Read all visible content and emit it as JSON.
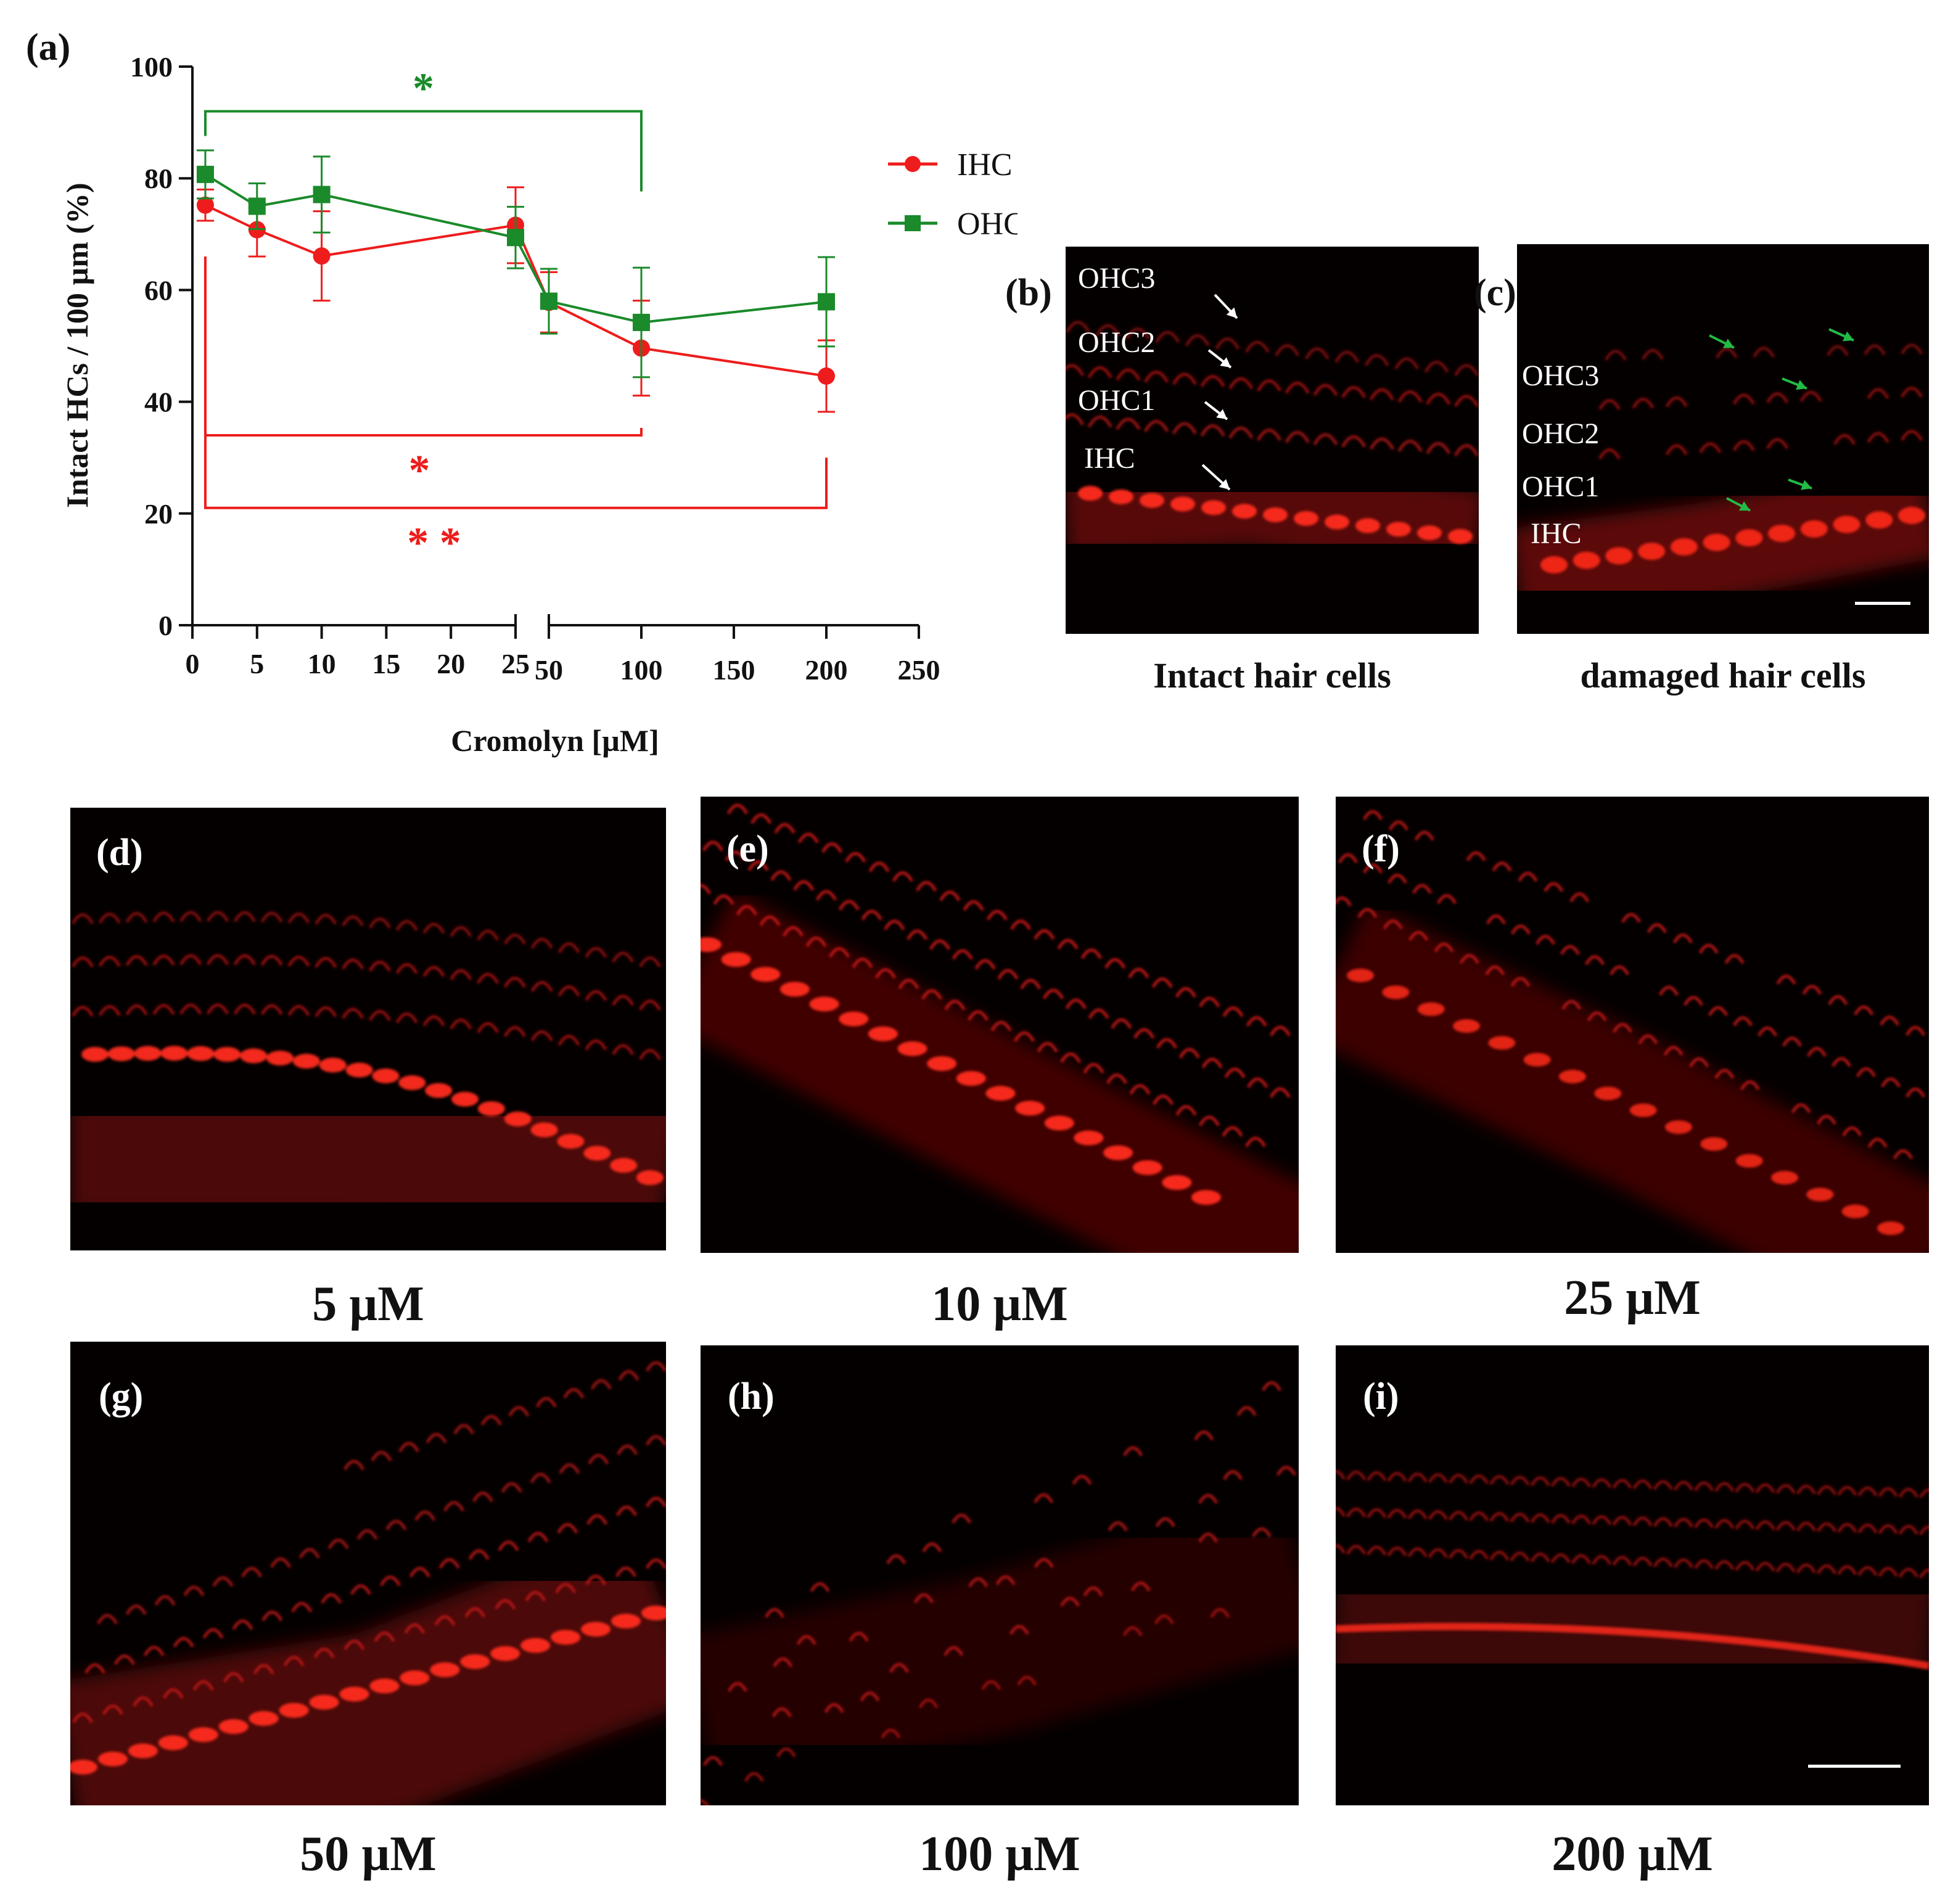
{
  "figure": {
    "panel_a": {
      "label": "(a)"
    },
    "panel_b": {
      "label": "(b)",
      "caption": "Intact hair cells",
      "row_labels": [
        "OHC3",
        "OHC2",
        "OHC1",
        "IHC"
      ]
    },
    "panel_c": {
      "label": "(c)",
      "caption": "damaged hair cells",
      "row_labels": [
        "OHC3",
        "OHC2",
        "OHC1",
        "IHC"
      ]
    },
    "panels": [
      {
        "id": "d",
        "label": "(d)",
        "caption": "5 µM"
      },
      {
        "id": "e",
        "label": "(e)",
        "caption": "10 µM"
      },
      {
        "id": "f",
        "label": "(f)",
        "caption": "25 µM"
      },
      {
        "id": "g",
        "label": "(g)",
        "caption": "50 µM"
      },
      {
        "id": "h",
        "label": "(h)",
        "caption": "100 µM"
      },
      {
        "id": "i",
        "label": "(i)",
        "caption": "200 µM"
      }
    ],
    "colors": {
      "ihc": "#ee1c1c",
      "ohc": "#1a8a2a",
      "arrow_white": "#ffffff",
      "arrow_green": "#22bb44",
      "cell": "#ff2a1a"
    }
  },
  "chart_data": {
    "type": "line",
    "xlabel": "Cromolyn  [µM]",
    "ylabel": "Intact HCs / 100 µm (%)",
    "ylim": [
      0,
      100
    ],
    "yticks": [
      "0",
      "20",
      "40",
      "60",
      "80",
      "100"
    ],
    "xticks_left": [
      "0",
      "5",
      "10",
      "15",
      "20",
      "25"
    ],
    "xticks_right": [
      "50",
      "100",
      "150",
      "200",
      "250"
    ],
    "axis_break": true,
    "legend": {
      "position": "top-right",
      "entries": [
        "IHC",
        "OHC"
      ]
    },
    "series": [
      {
        "name": "IHC",
        "color": "#ee1c1c",
        "marker": "circle",
        "x": [
          1,
          5,
          10,
          25,
          50,
          100,
          200
        ],
        "y": [
          75.2,
          70.8,
          66.1,
          71.6,
          57.8,
          49.6,
          44.6
        ],
        "err": [
          2.8,
          4.8,
          8.0,
          6.8,
          5.4,
          8.5,
          6.4
        ]
      },
      {
        "name": "OHC",
        "color": "#1a8a2a",
        "marker": "square",
        "x": [
          1,
          5,
          10,
          25,
          50,
          100,
          200
        ],
        "y": [
          80.7,
          75.0,
          77.1,
          69.4,
          58.0,
          54.2,
          57.9
        ],
        "err": [
          4.3,
          4.1,
          6.8,
          5.5,
          5.8,
          9.8,
          8.0
        ]
      }
    ],
    "significance": [
      {
        "label": "*",
        "color": "#1a8a2a",
        "from": 1,
        "to": 100,
        "y": 92
      },
      {
        "label": "*",
        "color": "#ee1c1c",
        "from": 1,
        "to": 100,
        "y": 34
      },
      {
        "label": "* *",
        "color": "#ee1c1c",
        "from": 1,
        "to": 200,
        "y": 21
      }
    ]
  }
}
